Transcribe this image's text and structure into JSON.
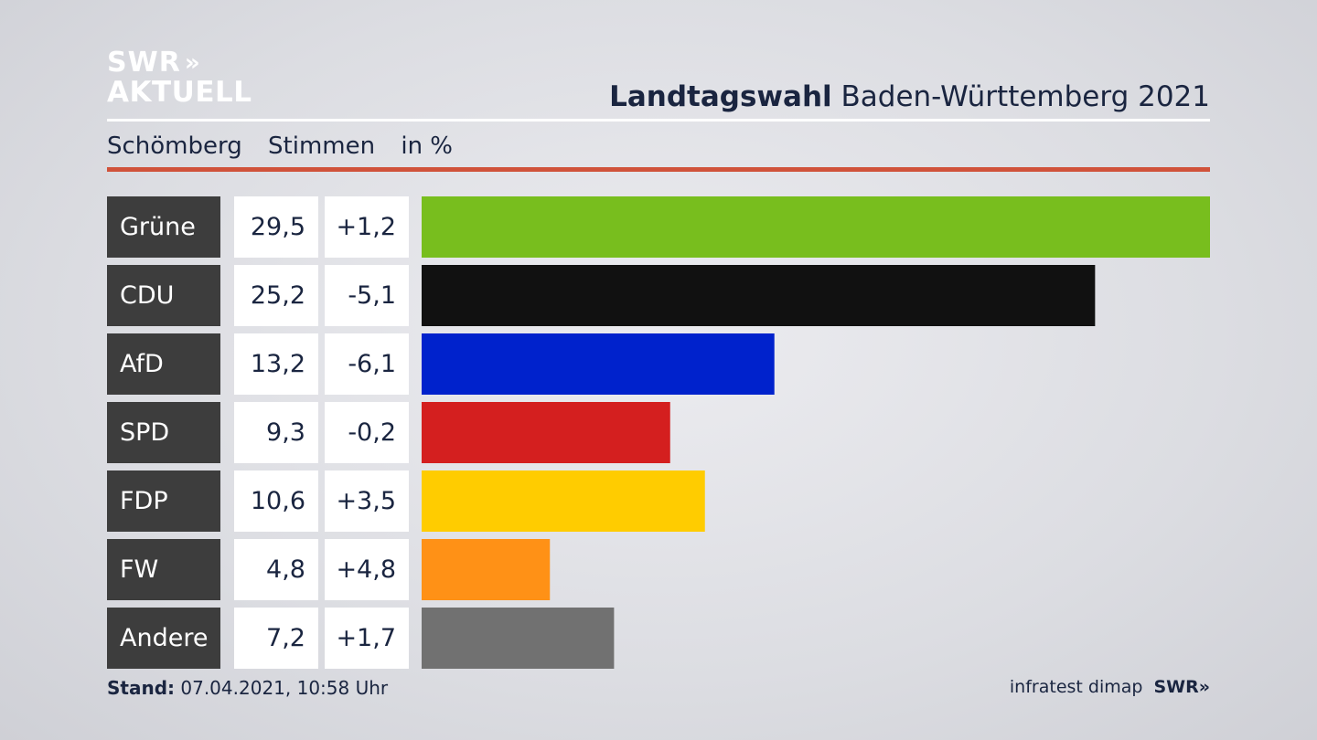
{
  "logo": {
    "line1": "SWR",
    "chevrons": "»",
    "line2": "AKTUELL"
  },
  "header": {
    "title_bold": "Landtagswahl",
    "title_rest": "Baden-Württemberg 2021"
  },
  "subheader": {
    "place": "Schömberg",
    "measure": "Stimmen",
    "unit": "in %"
  },
  "footer": {
    "stand_label": "Stand:",
    "stand_value": "07.04.2021, 10:58 Uhr",
    "source": "infratest dimap",
    "brand": "SWR»"
  },
  "chart_data": {
    "type": "bar",
    "orientation": "horizontal",
    "categories": [
      "Grüne",
      "CDU",
      "AfD",
      "SPD",
      "FDP",
      "FW",
      "Andere"
    ],
    "values": [
      29.5,
      25.2,
      13.2,
      9.3,
      10.6,
      4.8,
      7.2
    ],
    "value_labels": [
      "29,5",
      "25,2",
      "13,2",
      "9,3",
      "10,6",
      "4,8",
      "7,2"
    ],
    "change_labels": [
      "+1,2",
      "-5,1",
      "-6,1",
      "-0,2",
      "+3,5",
      "+4,8",
      "+1,7"
    ],
    "colors": [
      "#78be1e",
      "#111111",
      "#0022cc",
      "#d41f1f",
      "#ffcc00",
      "#ff9116",
      "#717171"
    ],
    "xlim": [
      0,
      29.5
    ],
    "grid": false,
    "legend": "none"
  }
}
